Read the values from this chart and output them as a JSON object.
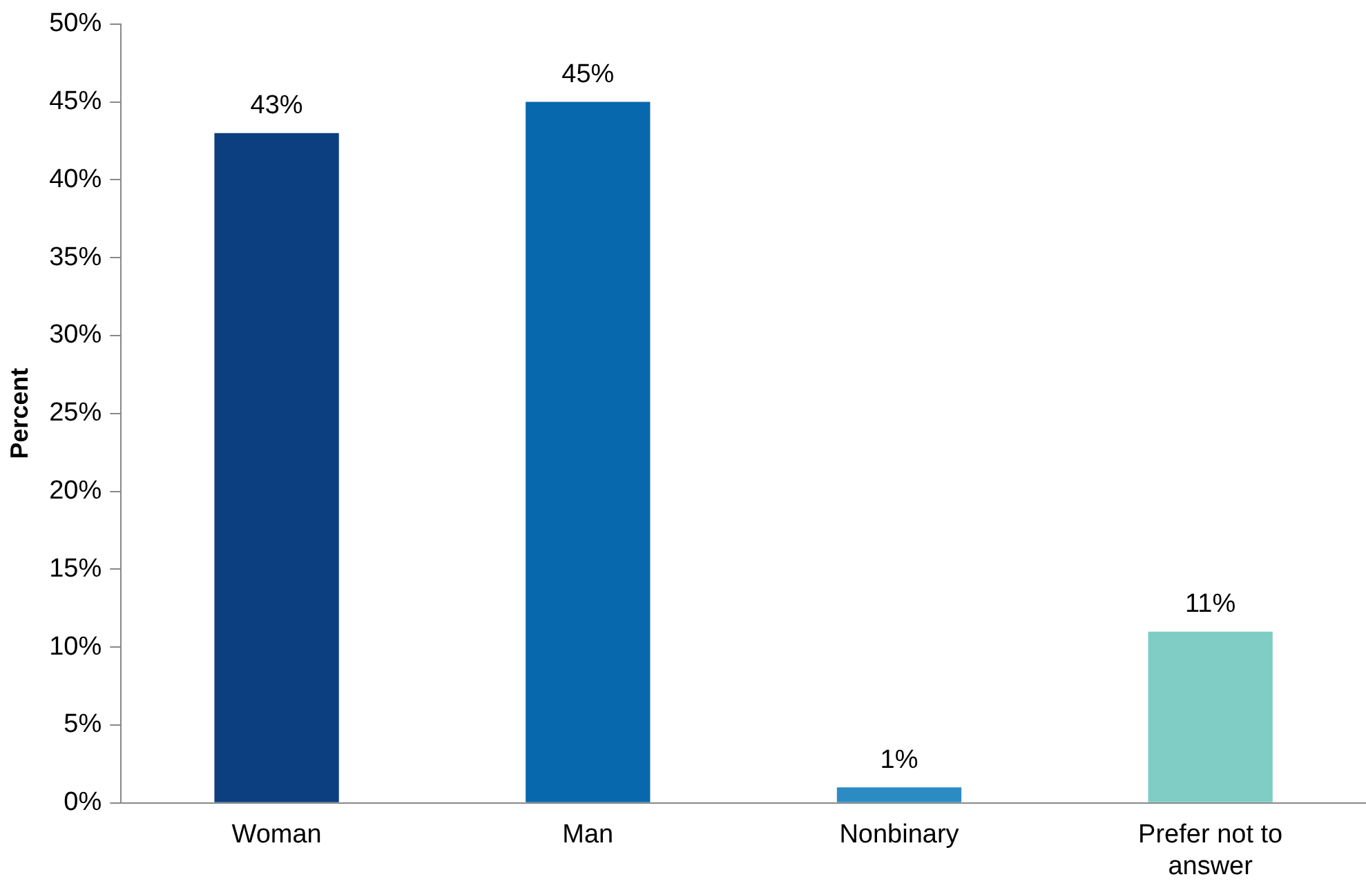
{
  "chart_data": {
    "type": "bar",
    "ylabel": "Percent",
    "categories": [
      "Woman",
      "Man",
      "Nonbinary",
      "Prefer not to answer"
    ],
    "values": [
      43,
      45,
      1,
      11
    ],
    "colors": [
      "#0b3f7f",
      "#0868ad",
      "#2b8cc4",
      "#7fcdc4"
    ],
    "value_labels": [
      "43%",
      "45%",
      "1%",
      "11%"
    ],
    "ylim": [
      0,
      50
    ],
    "yticks": [
      {
        "value": 0,
        "label": "0%"
      },
      {
        "value": 5,
        "label": "5%"
      },
      {
        "value": 10,
        "label": "10%"
      },
      {
        "value": 15,
        "label": "15%"
      },
      {
        "value": 20,
        "label": "20%"
      },
      {
        "value": 25,
        "label": "25%"
      },
      {
        "value": 30,
        "label": "30%"
      },
      {
        "value": 35,
        "label": "35%"
      },
      {
        "value": 40,
        "label": "40%"
      },
      {
        "value": 45,
        "label": "45%"
      },
      {
        "value": 50,
        "label": "50%"
      }
    ],
    "grid": false,
    "legend": false
  }
}
